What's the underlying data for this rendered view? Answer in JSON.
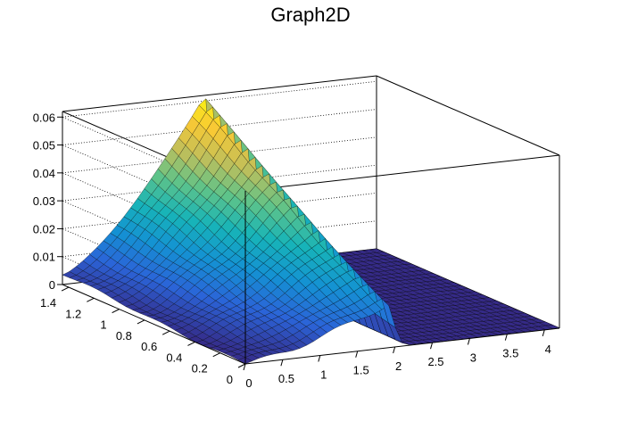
{
  "chart_data": {
    "type": "surface",
    "title": "Graph2D",
    "xlabel": "",
    "ylabel": "",
    "zlabel": "",
    "x_ticks": [
      "0",
      "0.5",
      "1",
      "1.5",
      "2",
      "2.5",
      "3",
      "3.5",
      "4"
    ],
    "y_ticks": [
      "0",
      "0.2",
      "0.4",
      "0.6",
      "0.8",
      "1",
      "1.2",
      "1.4"
    ],
    "z_ticks": [
      "0",
      "0.01",
      "0.02",
      "0.03",
      "0.04",
      "0.05",
      "0.06"
    ],
    "xlim": [
      0,
      4.2
    ],
    "ylim": [
      0,
      1.45
    ],
    "zlim": [
      0,
      0.062
    ],
    "grid": true,
    "colormap": [
      "#352a87",
      "#2b64d8",
      "#1492d3",
      "#17b4b8",
      "#5fc389",
      "#c1bf5a",
      "#f9c934",
      "#f9fb0e"
    ],
    "peak": {
      "x": 1.9,
      "y": 1.45,
      "z": 0.062
    },
    "ridge_x": 1.9
  }
}
